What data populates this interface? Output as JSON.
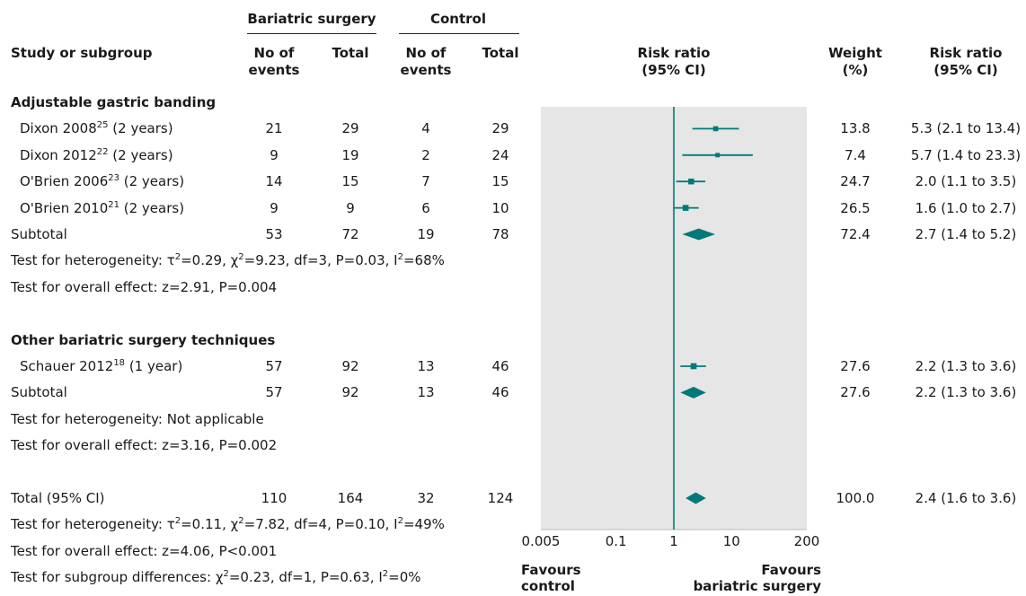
{
  "header": {
    "group1": "Bariatric surgery",
    "group2": "Control",
    "study_col": "Study or subgroup",
    "events_l1": "No of",
    "events_l2": "events",
    "total": "Total",
    "rr_l1": "Risk ratio",
    "rr_l2": "(95% CI)",
    "weight_l1": "Weight",
    "weight_l2": "(%)"
  },
  "rows": [
    {
      "kind": "group",
      "name": "Adjustable gastric banding"
    },
    {
      "kind": "study",
      "name": "Dixon 2008",
      "ref": "25",
      "dur": "(2 years)",
      "e1": "21",
      "t1": "29",
      "e2": "4",
      "t2": "29",
      "weight": "13.8",
      "ci_text": "5.3 (2.1 to 13.4)"
    },
    {
      "kind": "study",
      "name": "Dixon 2012",
      "ref": "22",
      "dur": "(2 years)",
      "e1": "9",
      "t1": "19",
      "e2": "2",
      "t2": "24",
      "weight": "7.4",
      "ci_text": "5.7 (1.4 to 23.3)"
    },
    {
      "kind": "study",
      "name": "O'Brien 2006",
      "ref": "23",
      "dur": "(2 years)",
      "e1": "14",
      "t1": "15",
      "e2": "7",
      "t2": "15",
      "weight": "24.7",
      "ci_text": "2.0 (1.1 to 3.5)"
    },
    {
      "kind": "study",
      "name": "O'Brien 2010",
      "ref": "21",
      "dur": "(2 years)",
      "e1": "9",
      "t1": "9",
      "e2": "6",
      "t2": "10",
      "weight": "26.5",
      "ci_text": "1.6 (1.0 to 2.7)"
    },
    {
      "kind": "subtotal",
      "name": "Subtotal",
      "e1": "53",
      "t1": "72",
      "e2": "19",
      "t2": "78",
      "weight": "72.4",
      "ci_text": "2.7 (1.4 to 5.2)"
    },
    {
      "kind": "note",
      "pre": "Test for heterogeneity: ",
      "stat": "τ2=0.29, χ2=9.23, df=3, P=0.03, I2=68%"
    },
    {
      "kind": "note",
      "text": "Test for overall effect: z=2.91, P=0.004"
    },
    {
      "kind": "blank"
    },
    {
      "kind": "group",
      "name": "Other bariatric surgery techniques"
    },
    {
      "kind": "study",
      "name": "Schauer 2012",
      "ref": "18",
      "dur": "(1 year)",
      "e1": "57",
      "t1": "92",
      "e2": "13",
      "t2": "46",
      "weight": "27.6",
      "ci_text": "2.2 (1.3 to 3.6)"
    },
    {
      "kind": "subtotal",
      "name": "Subtotal",
      "e1": "57",
      "t1": "92",
      "e2": "13",
      "t2": "46",
      "weight": "27.6",
      "ci_text": "2.2 (1.3 to 3.6)"
    },
    {
      "kind": "note",
      "text": "Test for heterogeneity: Not applicable"
    },
    {
      "kind": "note",
      "text": "Test for overall effect: z=3.16, P=0.002"
    },
    {
      "kind": "blank"
    },
    {
      "kind": "subtotal",
      "name": "Total (95% CI)",
      "e1": "110",
      "t1": "164",
      "e2": "32",
      "t2": "124",
      "weight": "100.0",
      "ci_text": "2.4 (1.6 to 3.6)"
    },
    {
      "kind": "note",
      "pre": "Test for heterogeneity: ",
      "stat": "τ2=0.11, χ2=7.82, df=4, P=0.10, I2=49%"
    },
    {
      "kind": "note",
      "text": "Test for overall effect: z=4.06, P<0.001"
    },
    {
      "kind": "note",
      "pre": "Test for subgroup differences: ",
      "stat": "χ2=0.23, df=1, P=0.63, I2=0%"
    }
  ],
  "axis": {
    "ticks": [
      "0.005",
      "0.1",
      "1",
      "10",
      "200"
    ],
    "favours_left": [
      "Favours",
      "control"
    ],
    "favours_right": [
      "Favours",
      "bariatric surgery"
    ]
  },
  "colors": {
    "marker": "#007a78",
    "panel": "#e6e6e6",
    "text": "#1a1a1a"
  },
  "chart_data": {
    "type": "forest",
    "scale": "log",
    "xlim": [
      0.005,
      200
    ],
    "reference_line": 1,
    "estimates": [
      {
        "label": "Dixon 2008",
        "rr": 5.3,
        "lo": 2.1,
        "hi": 13.4,
        "weight": 13.8,
        "marker": "square"
      },
      {
        "label": "Dixon 2012",
        "rr": 5.7,
        "lo": 1.4,
        "hi": 23.3,
        "weight": 7.4,
        "marker": "square"
      },
      {
        "label": "O'Brien 2006",
        "rr": 2.0,
        "lo": 1.1,
        "hi": 3.5,
        "weight": 24.7,
        "marker": "square"
      },
      {
        "label": "O'Brien 2010",
        "rr": 1.6,
        "lo": 1.0,
        "hi": 2.7,
        "weight": 26.5,
        "marker": "square"
      },
      {
        "label": "Subtotal",
        "rr": 2.7,
        "lo": 1.4,
        "hi": 5.2,
        "weight": 72.4,
        "marker": "diamond"
      },
      {
        "label": "Schauer 2012",
        "rr": 2.2,
        "lo": 1.3,
        "hi": 3.6,
        "weight": 27.6,
        "marker": "square"
      },
      {
        "label": "Subtotal",
        "rr": 2.2,
        "lo": 1.3,
        "hi": 3.6,
        "weight": 27.6,
        "marker": "diamond"
      },
      {
        "label": "Total (95% CI)",
        "rr": 2.4,
        "lo": 1.6,
        "hi": 3.6,
        "weight": 100.0,
        "marker": "diamond"
      }
    ]
  }
}
